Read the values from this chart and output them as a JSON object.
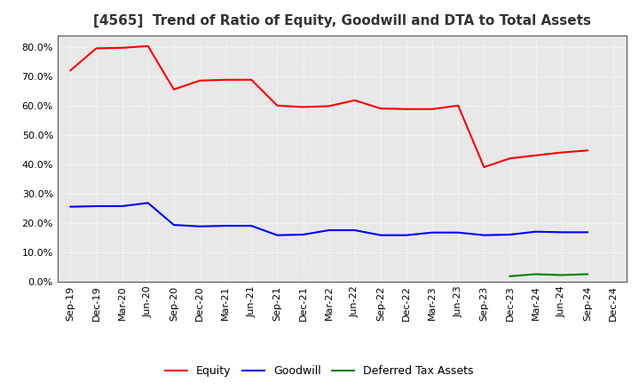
{
  "title": "[4565]  Trend of Ratio of Equity, Goodwill and DTA to Total Assets",
  "x_labels": [
    "Sep-19",
    "Dec-19",
    "Mar-20",
    "Jun-20",
    "Sep-20",
    "Dec-20",
    "Mar-21",
    "Jun-21",
    "Sep-21",
    "Dec-21",
    "Mar-22",
    "Jun-22",
    "Sep-22",
    "Dec-22",
    "Mar-23",
    "Jun-23",
    "Sep-23",
    "Dec-23",
    "Mar-24",
    "Jun-24",
    "Sep-24",
    "Dec-24"
  ],
  "equity": [
    0.72,
    0.795,
    0.797,
    0.803,
    0.655,
    0.685,
    0.688,
    0.688,
    0.6,
    0.595,
    0.598,
    0.618,
    0.59,
    0.588,
    0.588,
    0.6,
    0.39,
    0.42,
    0.43,
    0.44,
    0.447,
    null
  ],
  "goodwill": [
    0.255,
    0.257,
    0.257,
    0.268,
    0.193,
    0.188,
    0.19,
    0.19,
    0.158,
    0.16,
    0.175,
    0.175,
    0.158,
    0.158,
    0.167,
    0.167,
    0.158,
    0.16,
    0.17,
    0.168,
    0.168,
    null
  ],
  "dta": [
    null,
    null,
    null,
    null,
    null,
    null,
    null,
    null,
    null,
    null,
    null,
    null,
    null,
    null,
    null,
    null,
    null,
    0.018,
    0.025,
    0.022,
    0.025,
    null
  ],
  "equity_color": "#FF0000",
  "goodwill_color": "#0000FF",
  "dta_color": "#008000",
  "legend_labels": [
    "Equity",
    "Goodwill",
    "Deferred Tax Assets"
  ],
  "ylim": [
    0.0,
    0.84
  ],
  "yticks": [
    0.0,
    0.1,
    0.2,
    0.3,
    0.4,
    0.5,
    0.6,
    0.7,
    0.8
  ],
  "background_color": "#FFFFFF",
  "plot_bg_color": "#E8E8E8",
  "grid_color": "#FFFFFF",
  "title_fontsize": 11,
  "axis_fontsize": 8,
  "legend_fontsize": 9,
  "linewidth": 1.5
}
